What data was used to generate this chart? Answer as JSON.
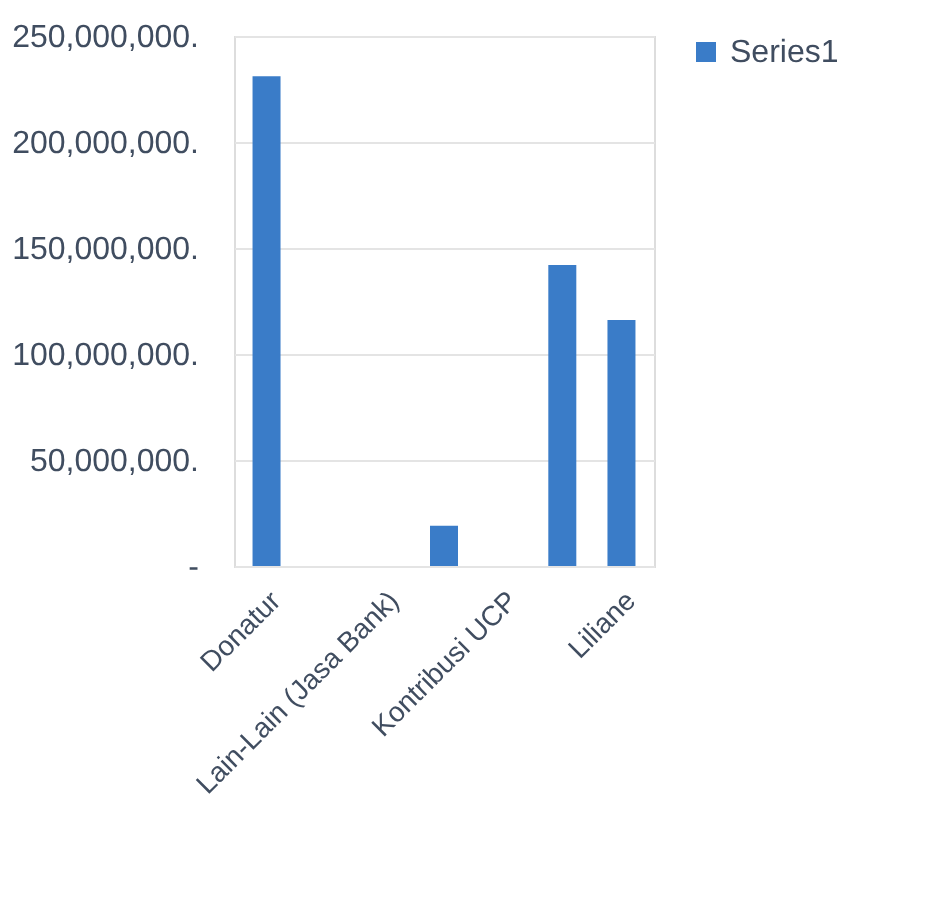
{
  "chart_data": {
    "type": "bar",
    "categories": [
      "Donatur",
      null,
      "Lain-Lain (Jasa Bank)",
      null,
      "Kontribusi UCP",
      null,
      "Liliane"
    ],
    "series": [
      {
        "name": "Series1",
        "color": "#3a7cc8",
        "values": [
          231000000,
          0,
          0,
          19000000,
          0,
          142000000,
          116000000
        ]
      }
    ],
    "ylim": [
      0,
      250000000
    ],
    "yticks": [
      {
        "value": 0,
        "label": "-"
      },
      {
        "value": 50000000,
        "label": "50,000,000."
      },
      {
        "value": 100000000,
        "label": "100,000,000."
      },
      {
        "value": 150000000,
        "label": "150,000,000."
      },
      {
        "value": 200000000,
        "label": "200,000,000."
      },
      {
        "value": 250000000,
        "label": "250,000,000."
      }
    ],
    "grid": "y",
    "legend": "right"
  }
}
